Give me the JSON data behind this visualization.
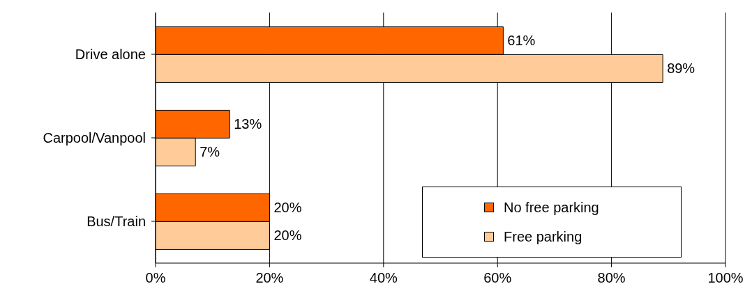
{
  "chart_data": {
    "type": "bar",
    "orientation": "horizontal",
    "categories": [
      "Drive alone",
      "Carpool/Vanpool",
      "Bus/Train"
    ],
    "series": [
      {
        "name": "No free parking",
        "color": "#ff6600",
        "values": [
          61,
          13,
          20
        ],
        "value_labels": [
          "61%",
          "13%",
          "20%"
        ]
      },
      {
        "name": "Free parking",
        "color": "#ffcc99",
        "values": [
          89,
          7,
          20
        ],
        "value_labels": [
          "89%",
          "7%",
          "20%"
        ]
      }
    ],
    "xlim": [
      0,
      100
    ],
    "xticks": [
      {
        "value": 0,
        "label": "0%"
      },
      {
        "value": 20,
        "label": "20%"
      },
      {
        "value": 40,
        "label": "40%"
      },
      {
        "value": 60,
        "label": "60%"
      },
      {
        "value": 80,
        "label": "80%"
      },
      {
        "value": 100,
        "label": "100%"
      }
    ],
    "grid": "x",
    "legend": "bottom right"
  }
}
